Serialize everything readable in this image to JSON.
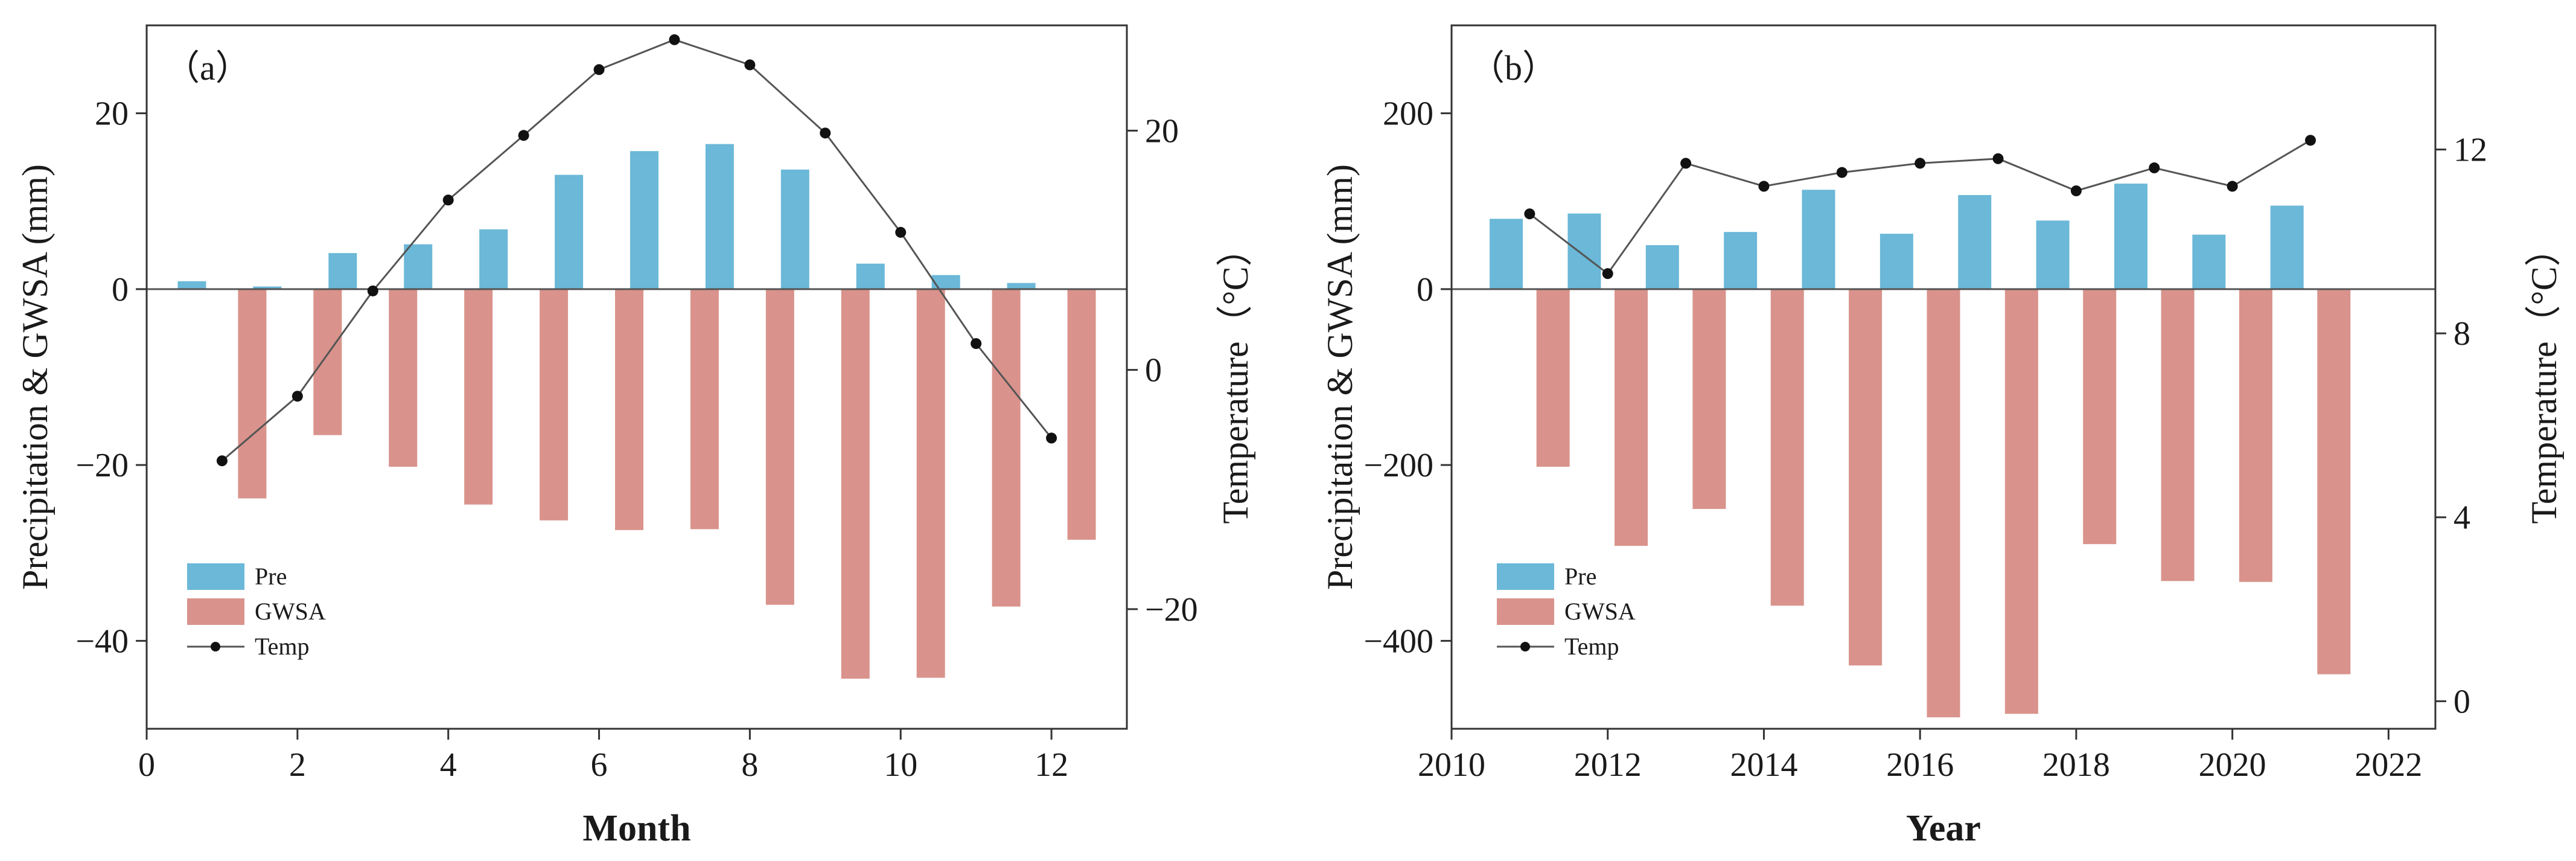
{
  "colors": {
    "pre": "#6bb8d8",
    "gwsa": "#d9938c",
    "temp_line": "#555555",
    "temp_marker": "#111111",
    "axis": "#333333",
    "zero_line": "#555555"
  },
  "chart_data": [
    {
      "type": "bar",
      "panel_label": "（a）",
      "xlabel": "Month",
      "ylabel": "Precipitation & GWSA (mm)",
      "y2label": "Temperature（°C）",
      "xlim": [
        0,
        13
      ],
      "ylim": [
        -50,
        30
      ],
      "y2lim": [
        -30,
        28.8
      ],
      "x_ticks": [
        0,
        2,
        4,
        6,
        8,
        10,
        12
      ],
      "y_ticks": [
        -40,
        -20,
        0,
        20
      ],
      "y2_ticks": [
        -20,
        0,
        20
      ],
      "x": [
        1,
        2,
        3,
        4,
        5,
        6,
        7,
        8,
        9,
        10,
        11,
        12
      ],
      "series": [
        {
          "name": "Pre",
          "kind": "bar",
          "axis": "left",
          "values": [
            0.9,
            0.3,
            4.1,
            5.1,
            6.8,
            13.0,
            15.7,
            16.5,
            13.6,
            2.9,
            1.6,
            0.7
          ]
        },
        {
          "name": "GWSA",
          "kind": "bar",
          "axis": "left",
          "values": [
            -23.8,
            -16.6,
            -20.2,
            -24.5,
            -26.3,
            -27.4,
            -27.3,
            -35.9,
            -44.3,
            -44.2,
            -36.1,
            -28.5
          ]
        },
        {
          "name": "Temp",
          "kind": "line",
          "axis": "right",
          "values": [
            -7.6,
            -2.2,
            6.6,
            14.2,
            19.6,
            25.1,
            27.6,
            25.5,
            19.8,
            11.5,
            2.2,
            -5.7
          ]
        }
      ],
      "legend": {
        "position": "bottom-left",
        "entries": [
          "Pre",
          "GWSA",
          "Temp"
        ]
      }
    },
    {
      "type": "bar",
      "panel_label": "（b）",
      "xlabel": "Year",
      "ylabel": "Precipitation & GWSA (mm)",
      "y2label": "Temperature（°C）",
      "xlim": [
        2010,
        2022.6
      ],
      "ylim": [
        -500,
        300
      ],
      "y2lim": [
        -0.6,
        14.7
      ],
      "x_ticks": [
        2010,
        2012,
        2014,
        2016,
        2018,
        2020,
        2022
      ],
      "y_ticks": [
        -400,
        -200,
        0,
        200
      ],
      "y2_ticks": [
        0,
        4,
        8,
        12
      ],
      "x": [
        2011,
        2012,
        2013,
        2014,
        2015,
        2016,
        2017,
        2018,
        2019,
        2020,
        2021
      ],
      "series": [
        {
          "name": "Pre",
          "kind": "bar",
          "axis": "left",
          "values": [
            80,
            86,
            50,
            65,
            113,
            63,
            107,
            78,
            120,
            62,
            95
          ]
        },
        {
          "name": "GWSA",
          "kind": "bar",
          "axis": "left",
          "values": [
            -202,
            -292,
            -250,
            -360,
            -428,
            -487,
            -483,
            -290,
            -332,
            -333,
            -438
          ]
        },
        {
          "name": "Temp",
          "kind": "line",
          "axis": "right",
          "values": [
            10.6,
            9.3,
            11.7,
            11.2,
            11.5,
            11.7,
            11.8,
            11.1,
            11.6,
            11.2,
            12.2
          ]
        }
      ],
      "legend": {
        "position": "bottom-left",
        "entries": [
          "Pre",
          "GWSA",
          "Temp"
        ]
      }
    }
  ]
}
